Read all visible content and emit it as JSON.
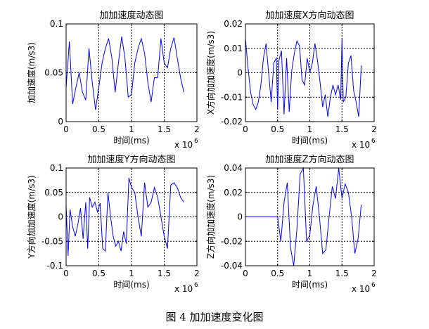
{
  "caption": "图 4  加加速度变化图",
  "chart_data": [
    {
      "type": "line",
      "title": "加加速度动态图",
      "xlabel": "时间(ms)",
      "ylabel": "加加速度(m/s3)",
      "x_multiplier": "x 10",
      "x_exponent": "6",
      "xlim": [
        0,
        2
      ],
      "ylim": [
        0,
        0.1
      ],
      "xticks": [
        "0",
        "0.5",
        "1",
        "1.5",
        "2"
      ],
      "yticks": [
        "0",
        "0.05",
        "0.1"
      ],
      "grid": true,
      "color": "#0000ff",
      "series": [
        {
          "x": [
            0.0,
            0.05,
            0.1,
            0.15,
            0.2,
            0.25,
            0.3,
            0.35,
            0.4,
            0.45,
            0.5,
            0.55,
            0.6,
            0.65,
            0.7,
            0.75,
            0.8,
            0.85,
            0.9,
            0.95,
            1.0,
            1.05,
            1.1,
            1.15,
            1.2,
            1.25,
            1.3,
            1.35,
            1.4,
            1.45,
            1.5,
            1.55,
            1.6,
            1.65,
            1.7,
            1.75,
            1.8
          ],
          "y": [
            0.035,
            0.082,
            0.018,
            0.035,
            0.05,
            0.03,
            0.022,
            0.075,
            0.04,
            0.012,
            0.035,
            0.06,
            0.075,
            0.085,
            0.065,
            0.03,
            0.06,
            0.087,
            0.065,
            0.025,
            0.028,
            0.06,
            0.075,
            0.085,
            0.07,
            0.04,
            0.02,
            0.045,
            0.045,
            0.085,
            0.06,
            0.055,
            0.075,
            0.086,
            0.065,
            0.045,
            0.03
          ]
        }
      ]
    },
    {
      "type": "line",
      "title": "加加速度X方向动态图",
      "xlabel": "时间(ms)",
      "ylabel": "X方向加加速度(m/s3)",
      "x_multiplier": "x 10",
      "x_exponent": "6",
      "xlim": [
        0,
        2
      ],
      "ylim": [
        -0.02,
        0.02
      ],
      "xticks": [
        "0",
        "0.5",
        "1",
        "1.5",
        "2"
      ],
      "yticks": [
        "-0.02",
        "-0.01",
        "0",
        "0.01",
        "0.02"
      ],
      "grid": true,
      "color": "#0000ff",
      "series": [
        {
          "x": [
            0.0,
            0.04,
            0.08,
            0.12,
            0.16,
            0.2,
            0.24,
            0.28,
            0.32,
            0.36,
            0.4,
            0.44,
            0.48,
            0.5,
            0.52,
            0.56,
            0.6,
            0.64,
            0.68,
            0.72,
            0.76,
            0.8,
            0.84,
            0.88,
            0.92,
            0.96,
            1.0,
            1.04,
            1.08,
            1.12,
            1.16,
            1.2,
            1.24,
            1.28,
            1.32,
            1.36,
            1.4,
            1.44,
            1.48,
            1.5,
            1.52,
            1.56,
            1.6,
            1.64,
            1.68,
            1.72,
            1.76,
            1.8
          ],
          "y": [
            0.014,
            0.002,
            -0.008,
            -0.013,
            -0.015,
            -0.012,
            -0.005,
            0.006,
            0.012,
            0.0,
            -0.012,
            0.004,
            0.006,
            -0.015,
            0.005,
            0.009,
            -0.017,
            0.006,
            -0.016,
            0.001,
            0.008,
            0.013,
            0.011,
            -0.003,
            -0.005,
            0.006,
            0.0,
            0.004,
            0.012,
            0.005,
            -0.004,
            -0.014,
            -0.009,
            -0.018,
            -0.01,
            -0.005,
            -0.009,
            -0.005,
            -0.011,
            0.014,
            -0.012,
            -0.01,
            0.004,
            0.007,
            -0.007,
            -0.012,
            -0.018,
            0.003
          ]
        }
      ]
    },
    {
      "type": "line",
      "title": "加加速度Y方向动态图",
      "xlabel": "时间(ms)",
      "ylabel": "Y方向加加速度(m/s3)",
      "x_multiplier": "x 10",
      "x_exponent": "6",
      "xlim": [
        0,
        2
      ],
      "ylim": [
        -0.1,
        0.1
      ],
      "xticks": [
        "0",
        "0.5",
        "1",
        "1.5",
        "2"
      ],
      "yticks": [
        "-0.1",
        "-0.05",
        "0",
        "0.05",
        "0.1"
      ],
      "grid": true,
      "color": "#0000ff",
      "series": [
        {
          "x": [
            0.0,
            0.03,
            0.06,
            0.1,
            0.14,
            0.18,
            0.22,
            0.26,
            0.3,
            0.33,
            0.36,
            0.4,
            0.44,
            0.48,
            0.52,
            0.56,
            0.6,
            0.64,
            0.68,
            0.72,
            0.76,
            0.8,
            0.84,
            0.88,
            0.92,
            0.96,
            1.0,
            1.05,
            1.1,
            1.15,
            1.2,
            1.25,
            1.3,
            1.35,
            1.4,
            1.45,
            1.5,
            1.55,
            1.6,
            1.65,
            1.7,
            1.75,
            1.8
          ],
          "y": [
            0.025,
            -0.08,
            0.015,
            -0.02,
            -0.04,
            -0.015,
            0.018,
            -0.045,
            0.03,
            -0.065,
            0.04,
            0.02,
            0.03,
            0.01,
            0.028,
            -0.065,
            -0.07,
            0.05,
            0.0,
            -0.04,
            -0.06,
            -0.05,
            -0.07,
            -0.03,
            -0.055,
            0.08,
            0.06,
            0.05,
            0.0,
            -0.04,
            0.07,
            0.02,
            0.03,
            0.06,
            0.04,
            0.0,
            -0.04,
            -0.065,
            0.065,
            0.07,
            0.06,
            0.04,
            0.03
          ]
        }
      ]
    },
    {
      "type": "line",
      "title": "加加速度Z方向动态图",
      "xlabel": "时间(ms)",
      "ylabel": "Z方向加加速度(m/s3)",
      "x_multiplier": "x 10",
      "x_exponent": "6",
      "xlim": [
        0,
        2
      ],
      "ylim": [
        -0.04,
        0.04
      ],
      "xticks": [
        "0",
        "0.5",
        "1",
        "1.5",
        "2"
      ],
      "yticks": [
        "-0.04",
        "-0.02",
        "0",
        "0.02",
        "0.04"
      ],
      "grid": true,
      "color": "#0000ff",
      "series": [
        {
          "x": [
            0.0,
            0.5,
            0.55,
            0.6,
            0.65,
            0.7,
            0.75,
            0.8,
            0.85,
            0.9,
            0.95,
            1.0,
            1.05,
            1.1,
            1.15,
            1.2,
            1.25,
            1.3,
            1.35,
            1.4,
            1.45,
            1.5,
            1.55,
            1.6,
            1.65,
            1.7,
            1.75,
            1.8
          ],
          "y": [
            0.0,
            0.0,
            -0.02,
            0.012,
            0.028,
            -0.025,
            -0.04,
            -0.01,
            0.035,
            0.04,
            -0.02,
            -0.015,
            0.01,
            0.025,
            0.0,
            -0.03,
            -0.027,
            0.0,
            0.025,
            0.015,
            0.04,
            0.015,
            0.027,
            0.02,
            0.0,
            -0.03,
            -0.018,
            0.01
          ]
        }
      ]
    }
  ]
}
